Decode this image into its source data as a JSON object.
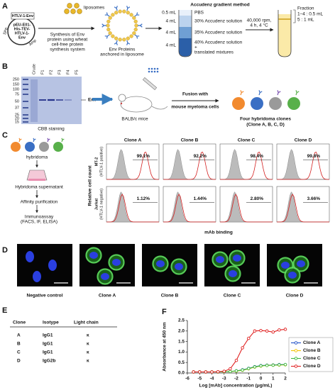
{
  "panels": {
    "a": {
      "label": "A",
      "plasmid_insert": "HTLV-1-Env",
      "plasmid": [
        "pEU-E01-",
        "His-TEV-",
        "HTLV-1-",
        "Env"
      ],
      "promoter": "SP6",
      "marker": "Amp",
      "liposomes": "liposomes",
      "synthesis": [
        "Synthesis of Env",
        "protein using wheat",
        "cell-free protein",
        "synthesis system"
      ],
      "env_liposome": [
        "Env Proteins",
        "anchored in liposome"
      ],
      "method": "Accudenz gradient method",
      "volumes": [
        "0.5 mL",
        "4 mL",
        "4 mL",
        "4 mL"
      ],
      "layers": [
        "PBS",
        "30% Accudenz solution",
        "35% Accudenz solution",
        "40% Accudenz solution"
      ],
      "layer_extra": [
        "+",
        "translated mixtures"
      ],
      "spin": [
        "40,000 rpm,",
        "4 h, 4 °C"
      ],
      "fraction": [
        "Fraction",
        "1–4 : 0.5 mL",
        "5 : 1 mL"
      ]
    },
    "b": {
      "label": "B",
      "lanes": [
        "Crude",
        "F1",
        "F2",
        "F3",
        "F4",
        "F5"
      ],
      "mw": [
        "250",
        "150",
        "100",
        "75",
        "50",
        "37",
        "25",
        "20",
        "15"
      ],
      "band": "Env",
      "stain": "CBB staining",
      "mice": "BALB/c mice",
      "fusion": [
        "Fusion with",
        "mouse myeloma cells"
      ],
      "clones": [
        "Four hybridoma clones",
        "(Clone A, B, C, D)"
      ]
    },
    "c": {
      "label": "C",
      "steps": [
        "hybridoma",
        "Hybridoma supernatant",
        "Affinity purification",
        "Immunoassay",
        "(FACS, IF, ELISA)"
      ],
      "clones": [
        "Clone A",
        "Clone B",
        "Clone C",
        "Clone D"
      ],
      "rows": [
        [
          "MT-2",
          "(HTLV-1 positive)"
        ],
        [
          "Jurkat",
          "(HTLV-1 negative)"
        ]
      ],
      "percents": [
        [
          "99.1%",
          "92.2%",
          "98.4%",
          "99.8%"
        ],
        [
          "1.12%",
          "1.44%",
          "2.80%",
          "3.66%"
        ]
      ],
      "y_label": "Relative cell count",
      "x_label": "mAb binding"
    },
    "d": {
      "label": "D",
      "captions": [
        "Negative control",
        "Clone A",
        "Clone B",
        "Clone C",
        "Clone D"
      ]
    },
    "e": {
      "label": "E",
      "header": [
        "Clone",
        "Isotype",
        "Light chain"
      ],
      "rows": [
        [
          "A",
          "IgG1",
          "κ"
        ],
        [
          "B",
          "IgG1",
          "κ"
        ],
        [
          "C",
          "IgG1",
          "κ"
        ],
        [
          "D",
          "IgG2b",
          "κ"
        ]
      ]
    }
  },
  "chart_data": {
    "type": "line",
    "panel_label": "F",
    "x_label": "Log [mAb] concentration (μg/mL)",
    "y_label": "Absorbance at 450 nm",
    "x": [
      -5.5,
      -5,
      -4.5,
      -4,
      -3.5,
      -3,
      -2.5,
      -2,
      -1.5,
      -1,
      -0.5,
      0,
      0.5,
      1,
      1.5,
      2
    ],
    "series": [
      {
        "name": "Clone A",
        "color": "#1f4fc8",
        "values": [
          0.05,
          0.05,
          0.05,
          0.05,
          0.05,
          0.06,
          0.07,
          0.1,
          0.15,
          0.22,
          0.3,
          0.35,
          0.37,
          0.38,
          0.4,
          0.4
        ]
      },
      {
        "name": "Clone B",
        "color": "#f2c200",
        "values": [
          0.05,
          0.05,
          0.05,
          0.05,
          0.05,
          0.06,
          0.07,
          0.09,
          0.13,
          0.2,
          0.28,
          0.33,
          0.36,
          0.37,
          0.38,
          0.39
        ]
      },
      {
        "name": "Clone C",
        "color": "#3cb83c",
        "values": [
          0.05,
          0.05,
          0.05,
          0.05,
          0.05,
          0.06,
          0.07,
          0.1,
          0.14,
          0.21,
          0.29,
          0.34,
          0.36,
          0.37,
          0.39,
          0.4
        ]
      },
      {
        "name": "Clone D",
        "color": "#e02020",
        "values": [
          0.05,
          0.05,
          0.05,
          0.05,
          0.06,
          0.08,
          0.2,
          0.6,
          1.2,
          1.65,
          2.0,
          2.02,
          2.0,
          1.95,
          2.05,
          2.08
        ]
      }
    ],
    "xlim": [
      -6,
      2
    ],
    "xticks": [
      -6,
      -5,
      -4,
      -3,
      -2,
      -1,
      0,
      1,
      2
    ],
    "ylim": [
      0,
      2.5
    ],
    "yticks": [
      {
        "value": 0,
        "label": "0.0"
      },
      0.5,
      {
        "value": 1,
        "label": "1.0"
      },
      1.5,
      {
        "value": 2,
        "label": "2.0"
      },
      2.5
    ],
    "legend": "right",
    "grid": false
  }
}
